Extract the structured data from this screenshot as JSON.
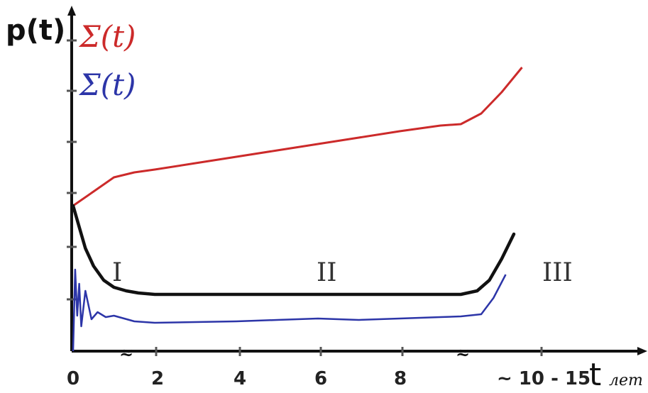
{
  "chart_data": {
    "type": "line",
    "ylabel": "p(t)",
    "xlabel": "t",
    "xunit": "лет",
    "x_ticks": [
      "0",
      "2",
      "4",
      "6",
      "8"
    ],
    "x_end_label": "~ 10 - 15",
    "region_labels": [
      "I",
      "II",
      "III"
    ],
    "axis_break": "≈",
    "grid": false,
    "legend_position": "top-left",
    "series": [
      {
        "name": "Σ(t)",
        "color": "#cc2a2a",
        "x": [
          0,
          0.5,
          1,
          1.5,
          2,
          3,
          4,
          5,
          6,
          7,
          8,
          9,
          9.5,
          10,
          10.5,
          11
        ],
        "y": [
          2.05,
          2.25,
          2.45,
          2.52,
          2.56,
          2.65,
          2.74,
          2.83,
          2.92,
          3.01,
          3.1,
          3.18,
          3.2,
          3.35,
          3.65,
          4.0
        ]
      },
      {
        "name": "Σ(t)",
        "color": "#2c35a8",
        "x": [
          0,
          0.05,
          0.1,
          0.15,
          0.2,
          0.3,
          0.45,
          0.6,
          0.8,
          1,
          1.5,
          2,
          3,
          4,
          5,
          6,
          7,
          8,
          9,
          9.5,
          10,
          10.3,
          10.6
        ],
        "y": [
          0.0,
          1.15,
          0.5,
          0.95,
          0.35,
          0.85,
          0.45,
          0.55,
          0.48,
          0.5,
          0.42,
          0.4,
          0.41,
          0.42,
          0.44,
          0.46,
          0.44,
          0.46,
          0.48,
          0.49,
          0.52,
          0.75,
          1.08
        ]
      },
      {
        "name": "",
        "color": "#111111",
        "x": [
          0,
          0.15,
          0.3,
          0.5,
          0.75,
          1,
          1.3,
          1.6,
          2,
          3,
          4,
          5,
          6,
          7,
          8,
          9,
          9.5,
          9.9,
          10.2,
          10.5,
          10.8
        ],
        "y": [
          2.05,
          1.75,
          1.45,
          1.2,
          1.0,
          0.9,
          0.85,
          0.82,
          0.8,
          0.8,
          0.8,
          0.8,
          0.8,
          0.8,
          0.8,
          0.8,
          0.8,
          0.85,
          1.0,
          1.3,
          1.65
        ]
      }
    ]
  }
}
